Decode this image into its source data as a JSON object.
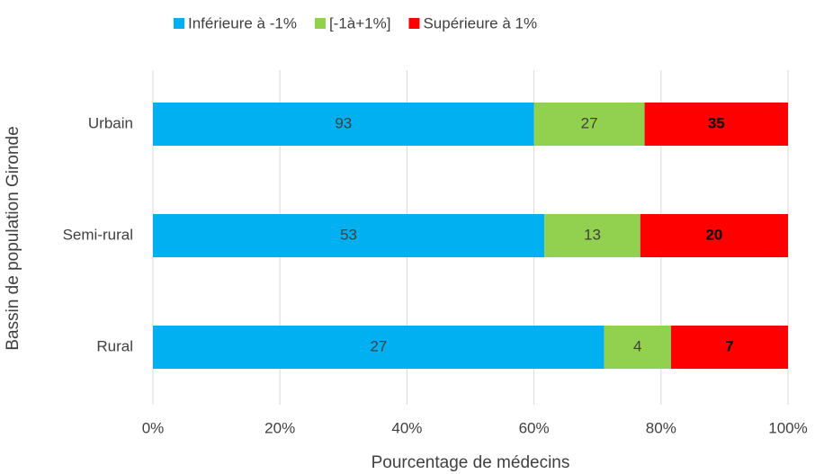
{
  "chart_data": {
    "type": "bar",
    "orientation": "horizontal",
    "stack": "percent",
    "categories": [
      "Urbain",
      "Semi-rural",
      "Rural"
    ],
    "series": [
      {
        "name": "Inférieure à -1%",
        "color": "#00b0f0",
        "values": [
          93,
          53,
          27
        ],
        "label_weight": "normal"
      },
      {
        "name": "[-1à+1%]",
        "color": "#92d050",
        "values": [
          27,
          13,
          4
        ],
        "label_weight": "normal"
      },
      {
        "name": "Supérieure à 1%",
        "color": "#ff0000",
        "values": [
          35,
          20,
          7
        ],
        "label_weight": "bold"
      }
    ],
    "xlim": [
      0,
      100
    ],
    "xticks": [
      {
        "value": 0,
        "label": "0%"
      },
      {
        "value": 20,
        "label": "20%"
      },
      {
        "value": 40,
        "label": "40%"
      },
      {
        "value": 60,
        "label": "60%"
      },
      {
        "value": 80,
        "label": "80%"
      },
      {
        "value": 100,
        "label": "100%"
      }
    ],
    "xlabel": "Pourcentage de médecins",
    "ylabel": "Bassin de population Gironde",
    "grid": true,
    "legend": "top"
  }
}
